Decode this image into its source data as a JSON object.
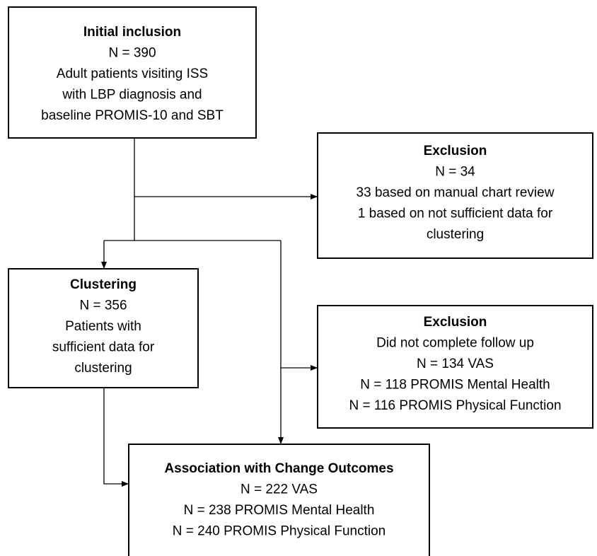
{
  "nodes": [
    {
      "title": "Initial inclusion",
      "lines": [
        "N = 390",
        "Adult patients visiting ISS",
        "with LBP diagnosis and",
        "baseline PROMIS-10 and SBT"
      ]
    },
    {
      "title": "Exclusion",
      "lines": [
        "N = 34",
        "33 based on manual chart review",
        "1 based on not sufficient data for",
        "clustering"
      ]
    },
    {
      "title": "Clustering",
      "lines": [
        "N = 356",
        "Patients with",
        "sufficient data for",
        "clustering"
      ]
    },
    {
      "title": "Exclusion",
      "lines": [
        "Did not complete follow up",
        "N = 134 VAS",
        "N = 118 PROMIS Mental Health",
        "N = 116 PROMIS Physical Function"
      ]
    },
    {
      "title": "Association with Change Outcomes",
      "lines": [
        "N = 222 VAS",
        "N = 238 PROMIS Mental Health",
        "N = 240 PROMIS Physical Function"
      ]
    }
  ]
}
